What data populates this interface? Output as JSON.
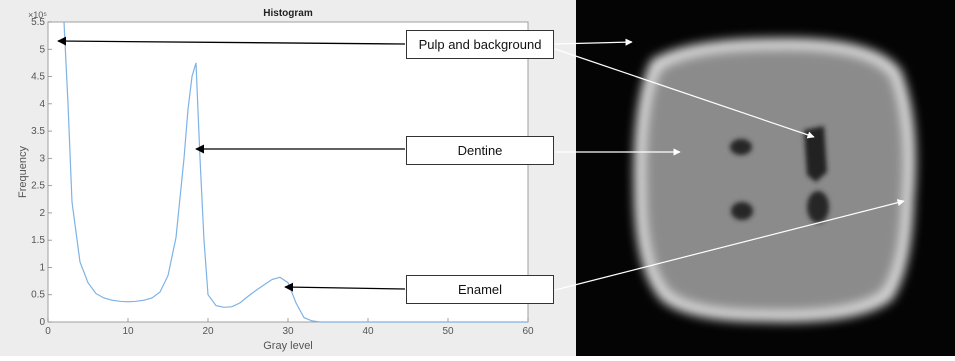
{
  "chart_data": {
    "type": "line",
    "title": "Histogram",
    "xlabel": "Gray level",
    "ylabel": "Frequency",
    "y_multiplier_label": "×10⁵",
    "xlim": [
      0,
      60
    ],
    "ylim": [
      0,
      5.5
    ],
    "x_ticks": [
      0,
      10,
      20,
      30,
      40,
      50,
      60
    ],
    "y_ticks": [
      0,
      0.5,
      1,
      1.5,
      2,
      2.5,
      3,
      3.5,
      4,
      4.5,
      5,
      5.5
    ],
    "grid": false,
    "series": [
      {
        "x": [
          2,
          2.5,
          3,
          4,
          5,
          6,
          7,
          8,
          9,
          10,
          11,
          12,
          13,
          14,
          15,
          16,
          17,
          17.5,
          18,
          18.5,
          19,
          19.5,
          20,
          21,
          22,
          23,
          24,
          25,
          26,
          27,
          28,
          29,
          30,
          31,
          32,
          33,
          34,
          60
        ],
        "y": [
          5.5,
          4.0,
          2.2,
          1.1,
          0.72,
          0.52,
          0.44,
          0.4,
          0.38,
          0.37,
          0.38,
          0.4,
          0.44,
          0.55,
          0.85,
          1.55,
          3.0,
          3.9,
          4.5,
          4.75,
          3.0,
          1.5,
          0.5,
          0.3,
          0.27,
          0.28,
          0.35,
          0.47,
          0.58,
          0.68,
          0.78,
          0.82,
          0.72,
          0.35,
          0.08,
          0.02,
          0,
          0
        ]
      }
    ],
    "line_color": "#7fb2e5"
  },
  "annotations": [
    {
      "label": "Pulp and background",
      "target_value": 5.5
    },
    {
      "label": "Dentine",
      "target_value": 3.25
    },
    {
      "label": "Enamel",
      "target_value": 0.7
    }
  ],
  "colors": {
    "panel_bg": "#ededed",
    "ct_bg": "#040404",
    "arrow": "#000000",
    "ct_arrow": "#ffffff"
  }
}
